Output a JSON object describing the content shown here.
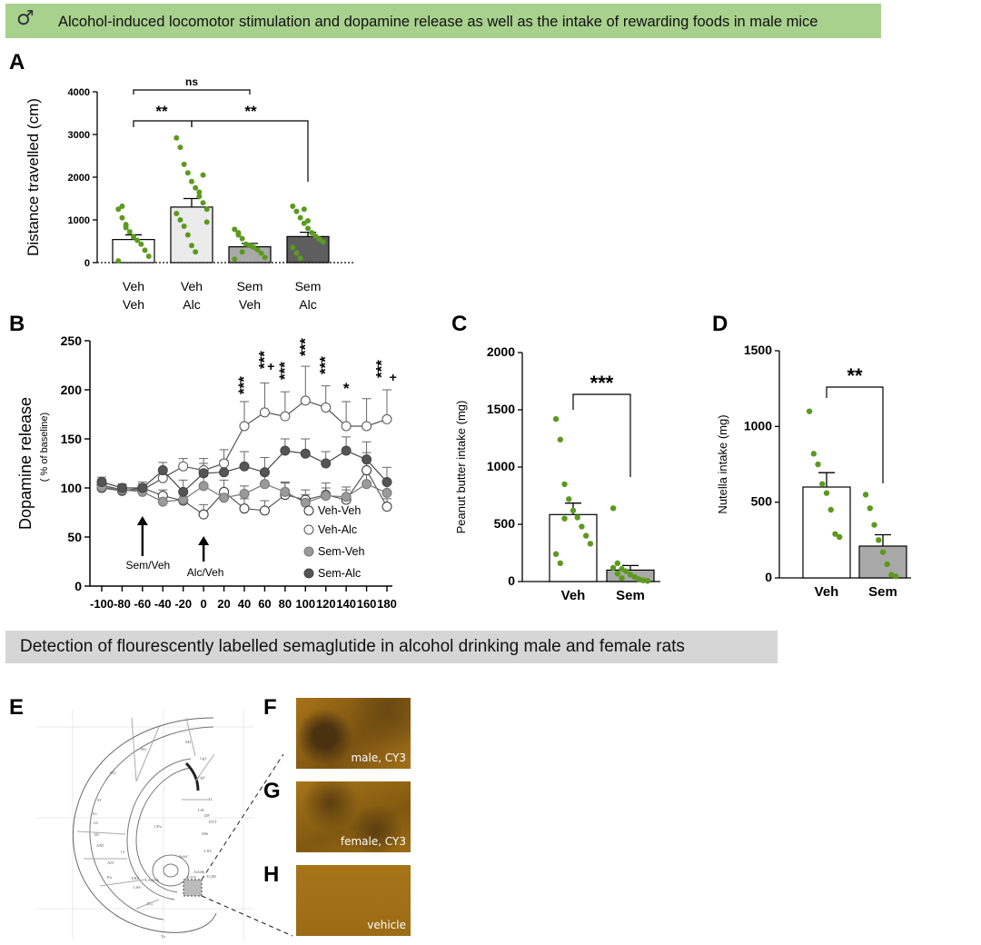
{
  "banner_top": {
    "symbol": "♂",
    "text": "Alcohol-induced locomotor stimulation and dopamine release as well as the intake of rewarding foods in male mice"
  },
  "banner_bottom": {
    "text": "Detection of flourescently labelled semaglutide in alcohol drinking male and female rats"
  },
  "panel_letters": {
    "A": "A",
    "B": "B",
    "C": "C",
    "D": "D",
    "E": "E",
    "F": "F",
    "G": "G",
    "H": "H"
  },
  "colors": {
    "green": "#5b9a1e",
    "banner_green": "#a9d18e",
    "banner_gray": "#d6d6d6",
    "bar_light": "#ebebeb",
    "bar_mid": "#a9a9a9",
    "bar_dark": "#5e5e5e",
    "micro": "#9a6a14"
  },
  "chart_data": [
    {
      "id": "A",
      "type": "bar",
      "ylabel": "Distance travelled (cm)",
      "ylim": [
        0,
        4000
      ],
      "yticks": [
        "0",
        "1000",
        "2000",
        "3000",
        "4000"
      ],
      "categories": [
        [
          "Veh",
          "Veh"
        ],
        [
          "Veh",
          "Alc"
        ],
        [
          "Sem",
          "Veh"
        ],
        [
          "Sem",
          "Alc"
        ]
      ],
      "values": [
        540,
        1300,
        370,
        610
      ],
      "sem": [
        110,
        200,
        80,
        100
      ],
      "points": [
        [
          1250,
          1050,
          820,
          720,
          600,
          520,
          430,
          290,
          150,
          40,
          1320,
          890
        ],
        [
          2920,
          2700,
          2300,
          2100,
          1900,
          1750,
          1550,
          1400,
          1250,
          1150,
          1000,
          850,
          650,
          400,
          250,
          1650,
          2050,
          950
        ],
        [
          780,
          650,
          560,
          430,
          400,
          360,
          300,
          220,
          120,
          80,
          700,
          250
        ],
        [
          1320,
          1200,
          1050,
          920,
          800,
          700,
          620,
          550,
          480,
          360,
          220,
          100,
          1250,
          980
        ]
      ],
      "annotations": [
        {
          "text": "ns",
          "from": 0,
          "to": 2
        },
        {
          "text": "**",
          "from": 0,
          "to": 1
        },
        {
          "text": "**",
          "from": 1,
          "to": 3
        }
      ]
    },
    {
      "id": "B",
      "type": "line",
      "ylabel": "Dopamine release",
      "ylabel2": "( % of baseline)",
      "xlim": [
        -110,
        185
      ],
      "ylim": [
        0,
        250
      ],
      "xticks": [
        "-100",
        "-80",
        "-60",
        "-40",
        "-20",
        "0",
        "20",
        "40",
        "60",
        "80",
        "100",
        "120",
        "140",
        "160",
        "180"
      ],
      "yticks": [
        "0",
        "50",
        "100",
        "150",
        "200",
        "250"
      ],
      "x": [
        -100,
        -80,
        -60,
        -40,
        -20,
        0,
        20,
        40,
        60,
        80,
        100,
        120,
        140,
        160,
        180
      ],
      "series": [
        {
          "name": "Veh-Veh",
          "values": [
            100,
            97,
            100,
            92,
            87,
            73,
            96,
            79,
            77,
            93,
            88,
            93,
            88,
            118,
            81
          ],
          "err": [
            4,
            4,
            4,
            6,
            8,
            10,
            12,
            10,
            10,
            12,
            10,
            12,
            10,
            18,
            8
          ]
        },
        {
          "name": "Veh-Alc",
          "values": [
            103,
            98,
            98,
            110,
            122,
            118,
            125,
            163,
            177,
            173,
            189,
            182,
            163,
            163,
            170
          ],
          "err": [
            6,
            5,
            6,
            10,
            8,
            12,
            14,
            25,
            30,
            25,
            35,
            22,
            25,
            28,
            30
          ]
        },
        {
          "name": "Sem-Veh",
          "values": [
            101,
            98,
            96,
            86,
            88,
            102,
            90,
            94,
            104,
            96,
            85,
            92,
            91,
            104,
            95
          ],
          "err": [
            4,
            5,
            6,
            8,
            7,
            10,
            8,
            8,
            10,
            10,
            8,
            8,
            10,
            12,
            10
          ]
        },
        {
          "name": "Sem-Alc",
          "values": [
            106,
            100,
            100,
            118,
            96,
            115,
            116,
            122,
            116,
            138,
            135,
            125,
            138,
            129,
            106
          ],
          "err": [
            5,
            4,
            6,
            8,
            12,
            10,
            12,
            15,
            15,
            12,
            15,
            12,
            14,
            18,
            15
          ]
        }
      ],
      "sig": [
        {
          "x": 40,
          "text": "***"
        },
        {
          "x": 60,
          "text": "***"
        },
        {
          "x": 66,
          "text": "+"
        },
        {
          "x": 80,
          "text": "***"
        },
        {
          "x": 100,
          "text": "***"
        },
        {
          "x": 120,
          "text": "***"
        },
        {
          "x": 140,
          "text": "*"
        },
        {
          "x": 175,
          "text": "***"
        },
        {
          "x": 186,
          "text": "+"
        }
      ],
      "arrows": [
        {
          "x": -60,
          "label": "Sem/Veh"
        },
        {
          "x": 0,
          "label": "Alc/Veh"
        }
      ]
    },
    {
      "id": "C",
      "type": "bar",
      "ylabel": "Peanut butter intake (mg)",
      "ylim": [
        0,
        2000
      ],
      "yticks": [
        "0",
        "500",
        "1000",
        "1500",
        "2000"
      ],
      "categories": [
        "Veh",
        "Sem"
      ],
      "values": [
        585,
        100
      ],
      "sem": [
        100,
        40
      ],
      "points": [
        [
          1420,
          1240,
          850,
          720,
          620,
          560,
          480,
          400,
          330,
          240,
          160,
          550
        ],
        [
          640,
          160,
          110,
          90,
          60,
          40,
          20,
          10,
          5,
          120,
          70,
          30
        ]
      ],
      "annotations": [
        {
          "text": "***",
          "from": 0,
          "to": 1
        }
      ]
    },
    {
      "id": "D",
      "type": "bar",
      "ylabel": "Nutella intake (mg)",
      "ylim": [
        0,
        1500
      ],
      "yticks": [
        "0",
        "500",
        "1000",
        "1500"
      ],
      "categories": [
        "Veh",
        "Sem"
      ],
      "values": [
        600,
        210
      ],
      "sem": [
        95,
        75
      ],
      "points": [
        [
          1100,
          820,
          750,
          620,
          560,
          450,
          290,
          270
        ],
        [
          550,
          460,
          350,
          250,
          170,
          90,
          20,
          10
        ]
      ],
      "annotations": [
        {
          "text": "**",
          "from": 0,
          "to": 1
        }
      ]
    }
  ],
  "micrographs": [
    {
      "id": "F",
      "label": "male, CY3"
    },
    {
      "id": "G",
      "label": "female, CY3"
    },
    {
      "id": "H",
      "label": "vehicle"
    }
  ],
  "brain_labels": [
    "M1",
    "M2",
    "S1J",
    "Cg1",
    "Cg2",
    "S1",
    "IG",
    "GI",
    "DI",
    "AID",
    "AIV",
    "CPu",
    "LSI",
    "IL",
    "DP",
    "DTT",
    "SHi",
    "LSV",
    "Cl",
    "AcbC",
    "AcbSh",
    "ICjM",
    "Pir",
    "LAcbSh",
    "LSS",
    "ICj",
    "Tu",
    "ERA",
    "E/OV"
  ]
}
